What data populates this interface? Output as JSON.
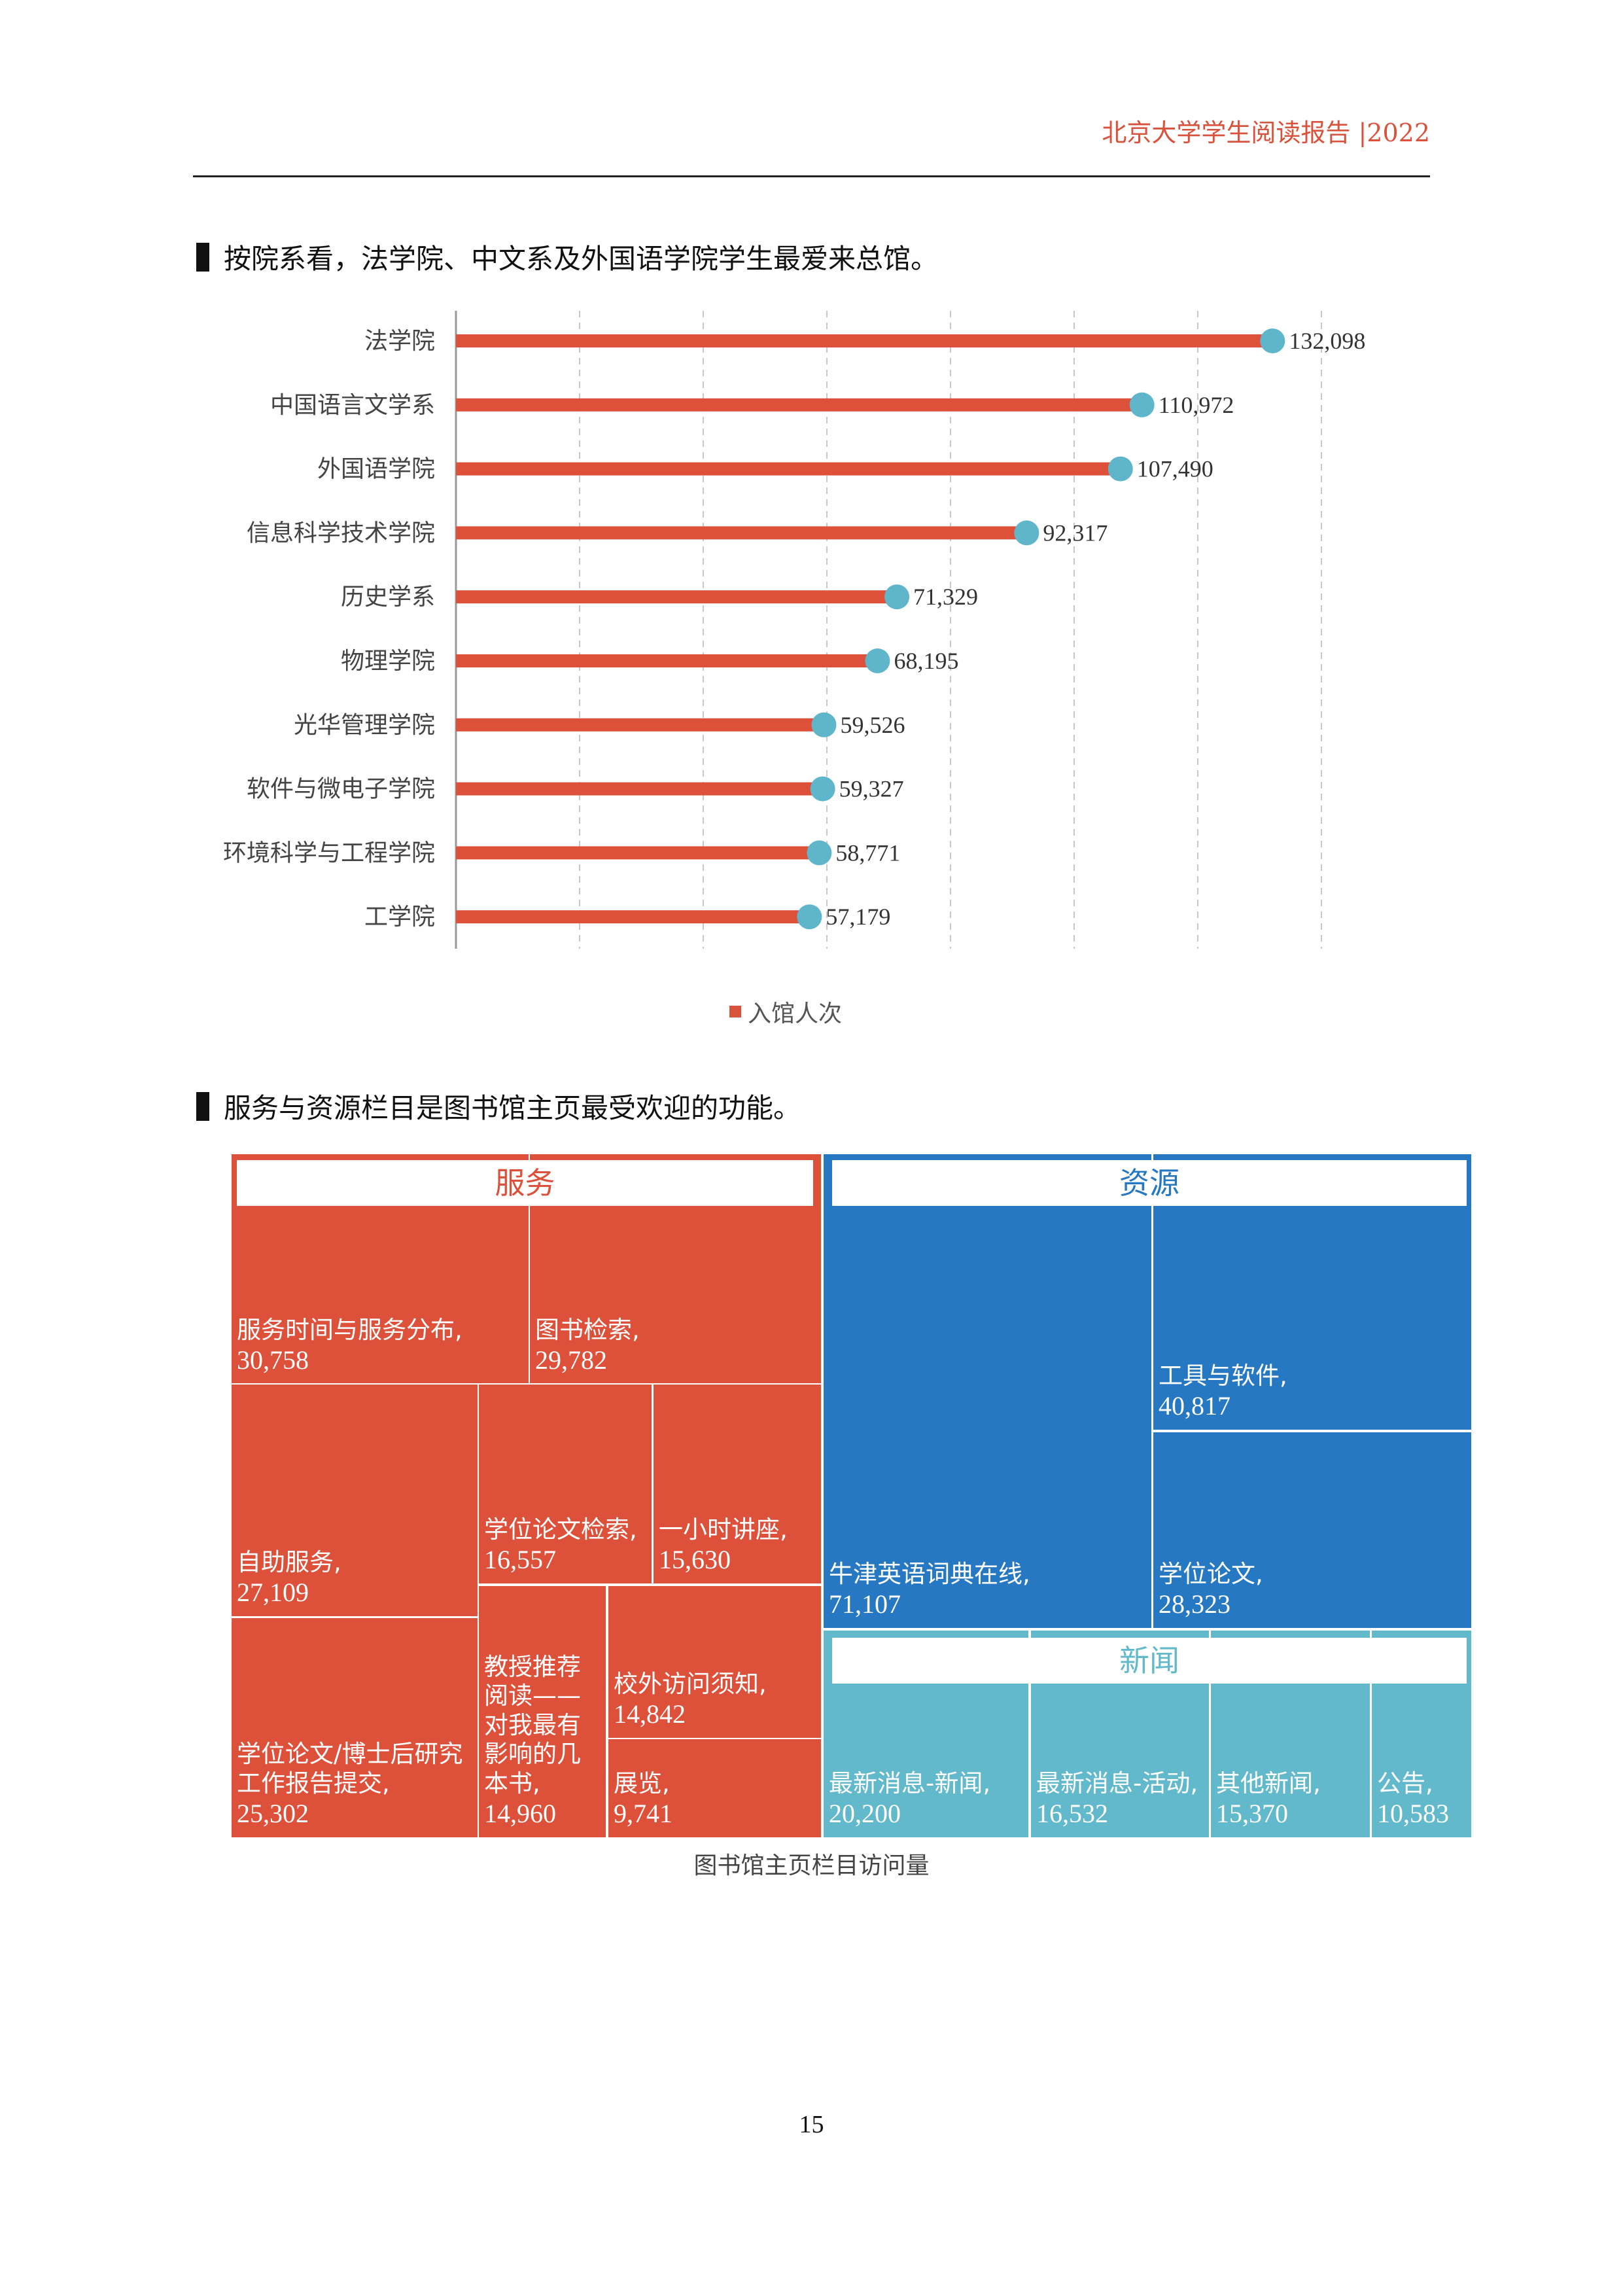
{
  "header": {
    "title": "北京大学学生阅读报告  |2022"
  },
  "section1": {
    "heading": "按院系看，法学院、中文系及外国语学院学生最爱来总馆。"
  },
  "section2": {
    "heading": "服务与资源栏目是图书馆主页最受欢迎的功能。"
  },
  "chart_data": [
    {
      "type": "bar",
      "orientation": "horizontal",
      "categories": [
        "法学院",
        "中国语言文学系",
        "外国语学院",
        "信息科学技术学院",
        "历史学系",
        "物理学院",
        "光华管理学院",
        "软件与微电子学院",
        "环境科学与工程学院",
        "工学院"
      ],
      "series": [
        {
          "name": "入馆人次",
          "values": [
            132098,
            110972,
            107490,
            92317,
            71329,
            68195,
            59526,
            59327,
            58771,
            57179
          ]
        }
      ],
      "value_labels": [
        "132,098",
        "110,972",
        "107,490",
        "92,317",
        "71,329",
        "68,195",
        "59,526",
        "59,327",
        "58,771",
        "57,179"
      ],
      "xlim": [
        0,
        140000
      ],
      "grid": true,
      "legend": "bottom",
      "colors": {
        "bar": "#dd513b",
        "marker": "#5fb6cb"
      }
    },
    {
      "type": "treemap",
      "caption": "图书馆主页栏目访问量",
      "groups": [
        {
          "name": "服务",
          "color": "#dd513b",
          "items": [
            {
              "label": "服务时间与服务分布,",
              "value_text": "30,758",
              "value": 30758
            },
            {
              "label": "图书检索,",
              "value_text": "29,782",
              "value": 29782
            },
            {
              "label": "自助服务,",
              "value_text": "27,109",
              "value": 27109
            },
            {
              "label": "学位论文检索,",
              "value_text": "16,557",
              "value": 16557
            },
            {
              "label": "一小时讲座,",
              "value_text": "15,630",
              "value": 15630
            },
            {
              "label": "学位论文/博士后研究工作报告提交,",
              "value_text": "25,302",
              "value": 25302
            },
            {
              "label": "教授推荐阅读——对我最有影响的几本书,",
              "value_text": "14,960",
              "value": 14960
            },
            {
              "label": "校外访问须知,",
              "value_text": "14,842",
              "value": 14842
            },
            {
              "label": "展览,",
              "value_text": "9,741",
              "value": 9741
            }
          ]
        },
        {
          "name": "资源",
          "color": "#2778c2",
          "items": [
            {
              "label": "牛津英语词典在线,",
              "value_text": "71,107",
              "value": 71107
            },
            {
              "label": "工具与软件,",
              "value_text": "40,817",
              "value": 40817
            },
            {
              "label": "学位论文,",
              "value_text": "28,323",
              "value": 28323
            }
          ]
        },
        {
          "name": "新闻",
          "color": "#63b9cc",
          "items": [
            {
              "label": "最新消息-新闻,",
              "value_text": "20,200",
              "value": 20200
            },
            {
              "label": "最新消息-活动,",
              "value_text": "16,532",
              "value": 16532
            },
            {
              "label": "其他新闻,",
              "value_text": "15,370",
              "value": 15370
            },
            {
              "label": "公告,",
              "value_text": "10,583",
              "value": 10583
            }
          ]
        }
      ]
    }
  ],
  "page_number": "15"
}
